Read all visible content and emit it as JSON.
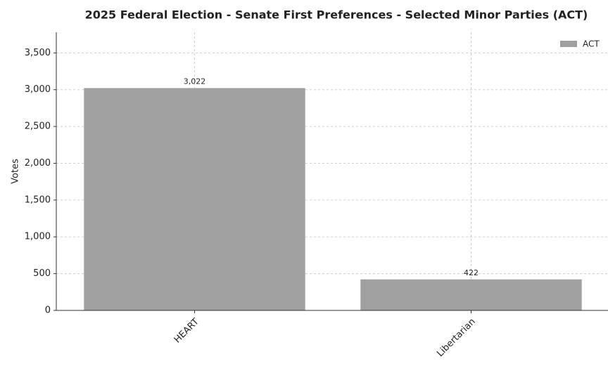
{
  "chart_data": {
    "type": "bar",
    "title": "2025 Federal Election - Senate First Preferences - Selected Minor Parties (ACT)",
    "ylabel": "Votes",
    "categories": [
      "HEART",
      "Libertarian"
    ],
    "series": [
      {
        "name": "ACT",
        "color": "#a0a0a0",
        "values": [
          3022,
          422
        ],
        "value_labels": [
          "3,022",
          "422"
        ]
      }
    ],
    "ylim": [
      0,
      3780
    ],
    "yticks": [
      0,
      500,
      {
        "value": 1000,
        "label": "1,000"
      },
      {
        "value": 1500,
        "label": "1,500"
      },
      {
        "value": 2000,
        "label": "2,000"
      },
      {
        "value": 2500,
        "label": "2,500"
      },
      {
        "value": 3000,
        "label": "3,000"
      },
      {
        "value": 3500,
        "label": "3,500"
      }
    ],
    "grid": true,
    "legend": "upper right"
  }
}
